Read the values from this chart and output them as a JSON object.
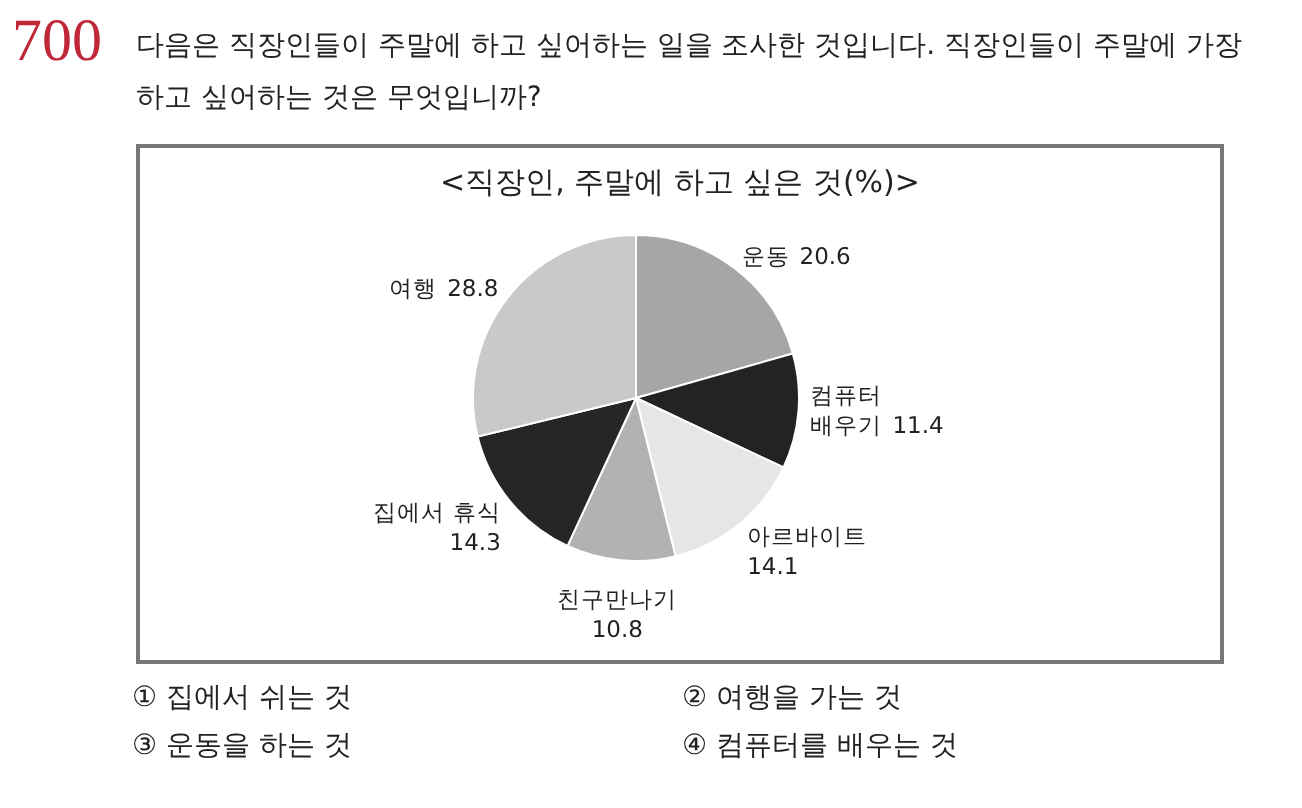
{
  "chart_data": {
    "type": "pie",
    "title": "<직장인, 주말에 하고 싶은 것(%)>",
    "categories": [
      "운동",
      "컴퓨터 배우기",
      "아르바이트",
      "친구만나기",
      "집에서 휴식",
      "여행"
    ],
    "values": [
      20.6,
      11.4,
      14.1,
      10.8,
      14.3,
      28.8
    ],
    "colors": [
      "#a6a6a6",
      "#232323",
      "#e6e6e6",
      "#b2b2b2",
      "#262626",
      "#c9c9c9"
    ],
    "data_labels": true,
    "legend": false,
    "annotations": [
      "700",
      "다음은 직장인들이 주말에 하고 싶어하는 일을 조사한 것입니다. 직장인들이 주말에 가장 하고 싶어하는 것은 무엇입니까?",
      "① 집에서 쉬는 것",
      "② 여행을 가는 것",
      "③ 운동을 하는 것",
      "④ 컴퓨터를 배우는 것"
    ]
  }
}
